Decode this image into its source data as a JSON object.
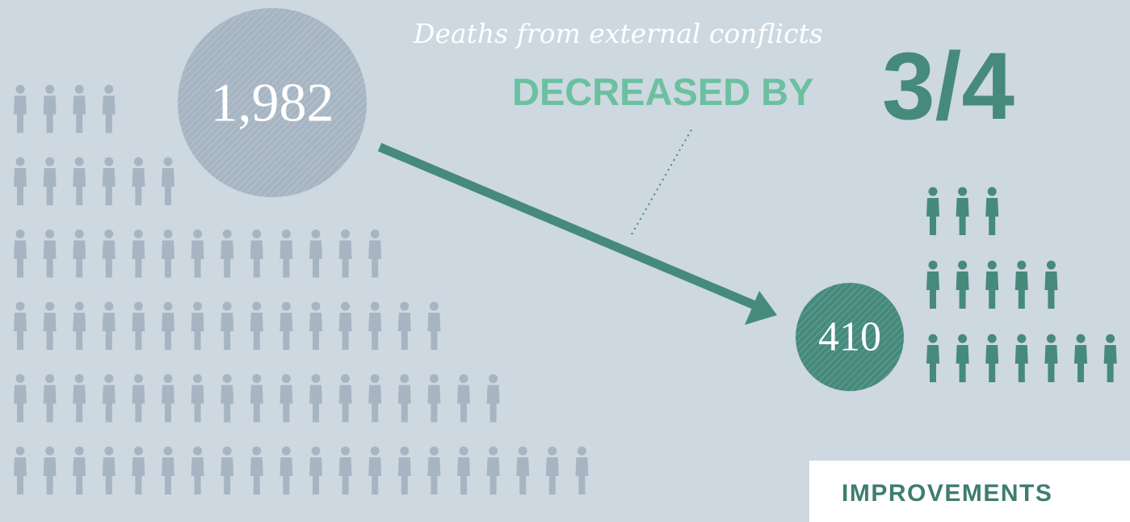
{
  "subtitle": "Deaths from external conflicts",
  "headline": {
    "lead": "DECREASED BY",
    "fraction": "3/4"
  },
  "before": {
    "value": "1,982",
    "color": "#a7b5c3",
    "rows": [
      4,
      6,
      13,
      15,
      17,
      20
    ]
  },
  "after": {
    "value": "410",
    "color": "#468a7c",
    "rows": [
      3,
      5,
      7
    ]
  },
  "arrow_color": "#468a7c",
  "tab_label": "IMPROVEMENTS",
  "icons": {
    "person": "person-icon",
    "arrow": "arrow-icon"
  }
}
